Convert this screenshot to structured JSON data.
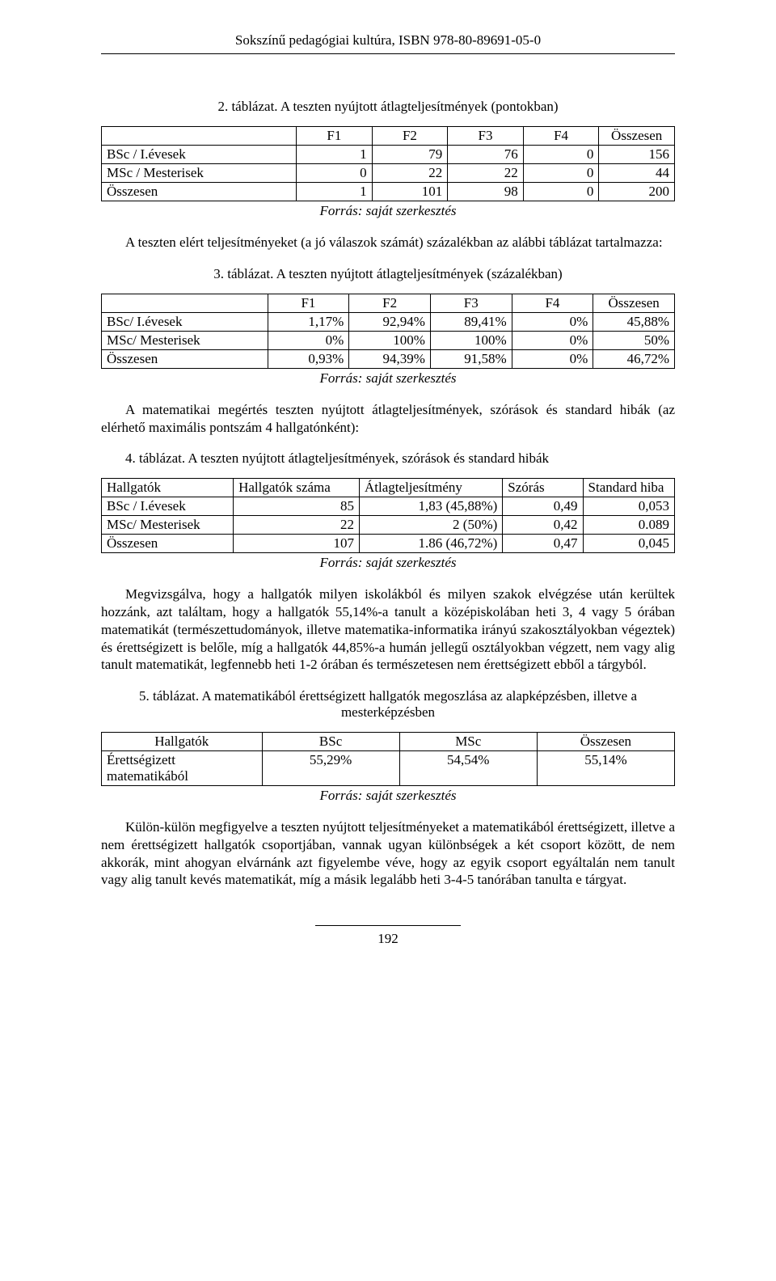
{
  "header": {
    "running": "Sokszínű pedagógiai kultúra, ISBN 978-80-89691-05-0"
  },
  "table2": {
    "caption": "2. táblázat. A teszten nyújtott átlagteljesítmények (pontokban)",
    "columns": [
      "",
      "F1",
      "F2",
      "F3",
      "F4",
      "Összesen"
    ],
    "rows": [
      [
        "BSc / I.évesek",
        "1",
        "79",
        "76",
        "0",
        "156"
      ],
      [
        "MSc / Mesterisek",
        "0",
        "22",
        "22",
        "0",
        "44"
      ],
      [
        "Összesen",
        "1",
        "101",
        "98",
        "0",
        "200"
      ]
    ],
    "source": "Forrás: saját szerkesztés"
  },
  "para1": "A teszten elért teljesítményeket (a jó válaszok számát) százalékban az alábbi táblázat tartalmazza:",
  "table3": {
    "caption": "3. táblázat. A teszten nyújtott átlagteljesítmények (százalékban)",
    "columns": [
      "",
      "F1",
      "F2",
      "F3",
      "F4",
      "Összesen"
    ],
    "rows": [
      [
        "BSc/ I.évesek",
        "1,17%",
        "92,94%",
        "89,41%",
        "0%",
        "45,88%"
      ],
      [
        "MSc/ Mesterisek",
        "0%",
        "100%",
        "100%",
        "0%",
        "50%"
      ],
      [
        "Összesen",
        "0,93%",
        "94,39%",
        "91,58%",
        "0%",
        "46,72%"
      ]
    ],
    "source": "Forrás: saját szerkesztés"
  },
  "para2": "A matematikai megértés teszten nyújtott átlagteljesítmények, szórások és standard hibák (az elérhető maximális pontszám 4 hallgatónként):",
  "table4": {
    "caption": "4. táblázat. A teszten nyújtott átlagteljesítmények, szórások és standard hibák",
    "columns": [
      "Hallgatók",
      "Hallgatók száma",
      "Átlagteljesítmény",
      "Szórás",
      "Standard hiba"
    ],
    "rows": [
      [
        "BSc / I.évesek",
        "85",
        "1,83 (45,88%)",
        "0,49",
        "0,053"
      ],
      [
        "MSc/ Mesterisek",
        "22",
        "2 (50%)",
        "0,42",
        "0.089"
      ],
      [
        "Összesen",
        "107",
        "1.86 (46,72%)",
        "0,47",
        "0,045"
      ]
    ],
    "source": "Forrás: saját szerkesztés"
  },
  "para3": "Megvizsgálva, hogy a hallgatók milyen iskolákból és milyen szakok elvégzése után kerültek hozzánk, azt találtam, hogy a hallgatók 55,14%-a tanult a középiskolában heti 3, 4 vagy 5 órában matematikát (természettudományok, illetve matematika-informatika irányú szakosztályokban végeztek) és érettségizett is belőle, míg a hallgatók 44,85%-a humán jellegű osztályokban végzett, nem vagy alig tanult matematikát, legfennebb heti 1-2 órában és természetesen nem érettségizett ebből a tárgyból.",
  "table5": {
    "caption": "5. táblázat. A matematikából érettségizett hallgatók megoszlása az alapképzésben, illetve a mesterképzésben",
    "columns": [
      "Hallgatók",
      "BSc",
      "MSc",
      "Összesen"
    ],
    "rows": [
      [
        "Érettségizett matematikából",
        "55,29%",
        "54,54%",
        "55,14%"
      ]
    ],
    "source": "Forrás: saját szerkesztés"
  },
  "para4": "Külön-külön megfigyelve a teszten nyújtott teljesítményeket a matematikából érettségizett, illetve a nem érettségizett hallgatók csoportjában, vannak ugyan különbségek a két csoport között, de nem akkorák, mint ahogyan elvárnánk azt figyelembe véve, hogy az egyik csoport egyáltalán nem tanult vagy alig tanult kevés matematikát, míg a másik legalább heti 3-4-5 tanórában tanulta e tárgyat.",
  "footer": {
    "page_number": "192"
  }
}
